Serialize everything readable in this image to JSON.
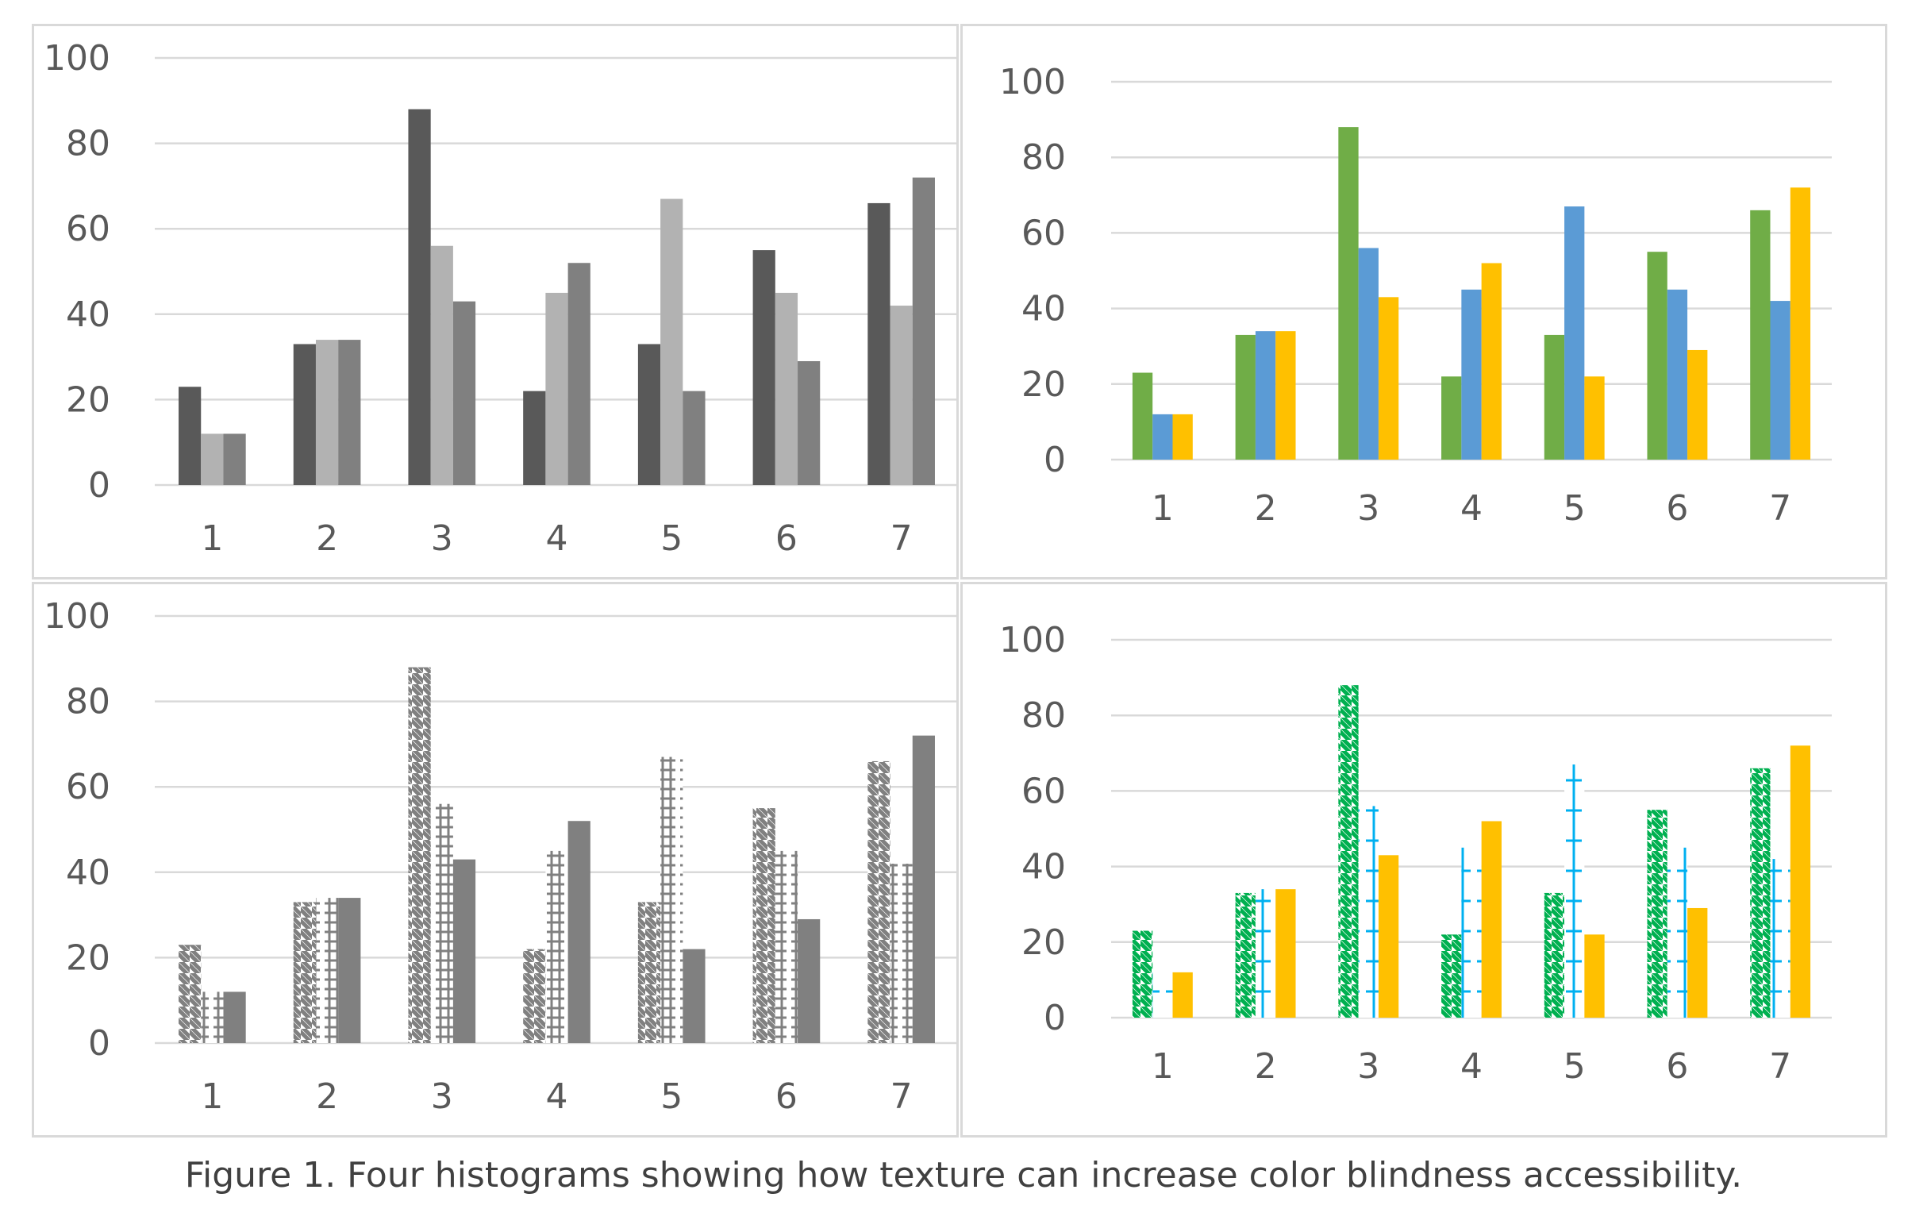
{
  "caption": "Figure 1. Four histograms showing how texture can increase color blindness accessibility.",
  "colors": {
    "gray_dark": "#595959",
    "gray_light": "#b2b2b2",
    "gray_mid": "#808080",
    "green": "#70ad47",
    "blue": "#5b9bd5",
    "yellow": "#ffc000",
    "pattern_green": "#00b050",
    "pattern_blue": "#00b0f0",
    "grid": "#d9d9d9",
    "axis_text": "#595959"
  },
  "chart_data": [
    {
      "type": "bar",
      "style": "grayscale solid",
      "categories": [
        "1",
        "2",
        "3",
        "4",
        "5",
        "6",
        "7"
      ],
      "series": [
        {
          "values": [
            23,
            33,
            88,
            22,
            33,
            55,
            66
          ]
        },
        {
          "values": [
            12,
            34,
            56,
            45,
            67,
            45,
            42
          ]
        },
        {
          "values": [
            12,
            34,
            43,
            52,
            22,
            29,
            72
          ]
        }
      ],
      "ylim": [
        0,
        100
      ],
      "yticks": [
        "0",
        "20",
        "40",
        "60",
        "80",
        "100"
      ],
      "grid": true,
      "legend": "none"
    },
    {
      "type": "bar",
      "style": "color solid",
      "categories": [
        "1",
        "2",
        "3",
        "4",
        "5",
        "6",
        "7"
      ],
      "series": [
        {
          "values": [
            23,
            33,
            88,
            22,
            33,
            55,
            66
          ]
        },
        {
          "values": [
            12,
            34,
            56,
            45,
            67,
            45,
            42
          ]
        },
        {
          "values": [
            12,
            34,
            43,
            52,
            22,
            29,
            72
          ]
        }
      ],
      "ylim": [
        0,
        100
      ],
      "yticks": [
        "0",
        "20",
        "40",
        "60",
        "80",
        "100"
      ],
      "grid": true,
      "legend": "none"
    },
    {
      "type": "bar",
      "style": "grayscale textured",
      "categories": [
        "1",
        "2",
        "3",
        "4",
        "5",
        "6",
        "7"
      ],
      "series": [
        {
          "values": [
            23,
            33,
            88,
            22,
            33,
            55,
            66
          ]
        },
        {
          "values": [
            12,
            34,
            56,
            45,
            67,
            45,
            42
          ]
        },
        {
          "values": [
            12,
            34,
            43,
            52,
            22,
            29,
            72
          ]
        }
      ],
      "ylim": [
        0,
        100
      ],
      "yticks": [
        "0",
        "20",
        "40",
        "60",
        "80",
        "100"
      ],
      "grid": true,
      "legend": "none"
    },
    {
      "type": "bar",
      "style": "color textured",
      "categories": [
        "1",
        "2",
        "3",
        "4",
        "5",
        "6",
        "7"
      ],
      "series": [
        {
          "values": [
            23,
            33,
            88,
            22,
            33,
            55,
            66
          ]
        },
        {
          "values": [
            12,
            34,
            56,
            45,
            67,
            45,
            42
          ]
        },
        {
          "values": [
            12,
            34,
            43,
            52,
            22,
            29,
            72
          ]
        }
      ],
      "ylim": [
        0,
        100
      ],
      "yticks": [
        "0",
        "20",
        "40",
        "60",
        "80",
        "100"
      ],
      "grid": true,
      "legend": "none"
    }
  ]
}
